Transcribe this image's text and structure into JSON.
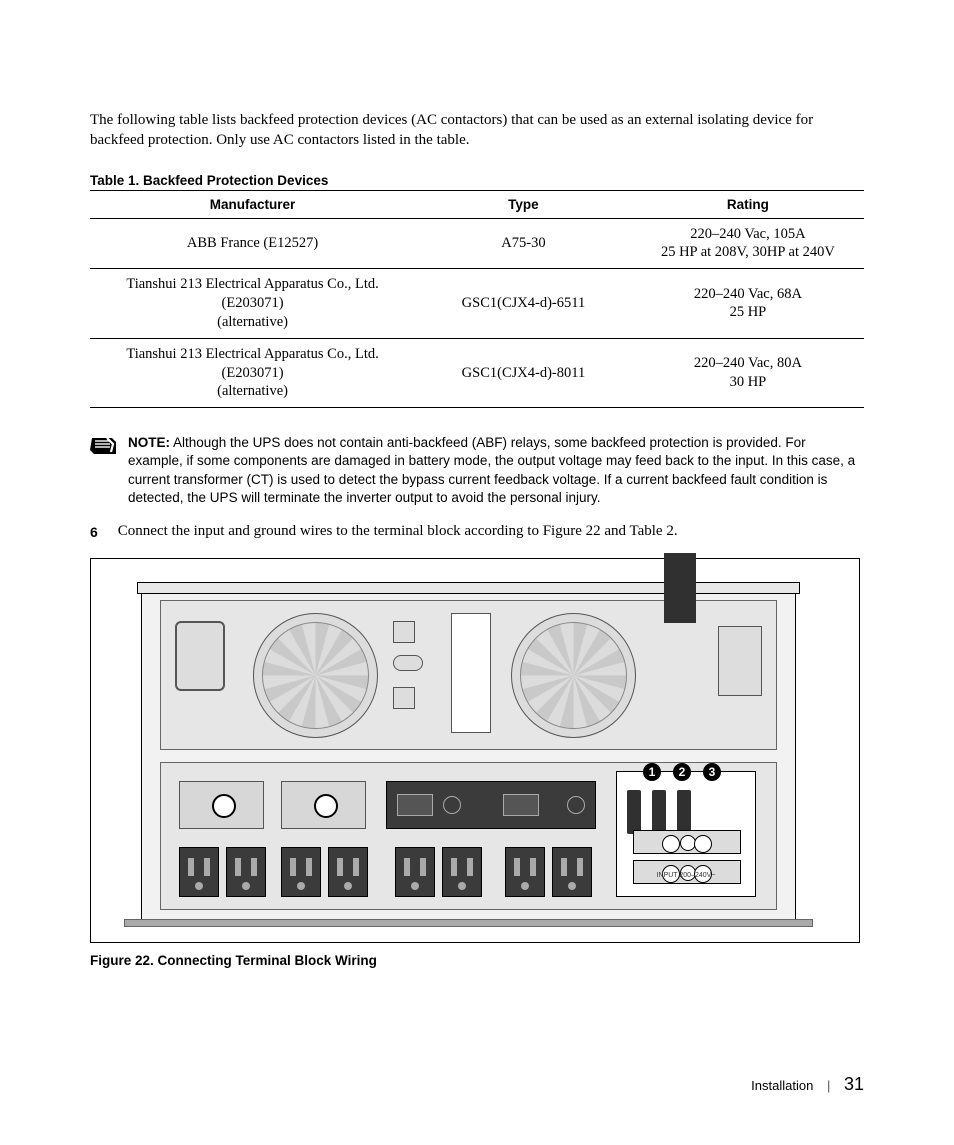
{
  "intro": "The following table lists backfeed protection devices (AC contactors) that can be used as an external isolating device for backfeed protection. Only use AC contactors listed in the table.",
  "table": {
    "title": "Table 1. Backfeed Protection Devices",
    "columns": [
      "Manufacturer",
      "Type",
      "Rating"
    ],
    "col_widths": [
      "42%",
      "28%",
      "30%"
    ],
    "rows": [
      {
        "manufacturer": "ABB France (E12527)",
        "type": "A75-30",
        "rating": "220–240 Vac, 105A\n25 HP at 208V, 30HP at 240V"
      },
      {
        "manufacturer": "Tianshui 213 Electrical Apparatus Co., Ltd. (E203071)\n(alternative)",
        "type": "GSC1(CJX4-d)-6511",
        "rating": "220–240 Vac, 68A\n25 HP"
      },
      {
        "manufacturer": "Tianshui 213 Electrical Apparatus Co., Ltd. (E203071)\n(alternative)",
        "type": "GSC1(CJX4-d)-8011",
        "rating": "220–240 Vac, 80A\n30 HP"
      }
    ]
  },
  "note": {
    "label": "NOTE:",
    "body": "Although the UPS does not contain anti-backfeed (ABF) relays, some backfeed protection is provided. For example, if some components are damaged in battery mode, the output voltage may feed back to the input. In this case, a current transformer (CT) is used to detect the bypass current feedback voltage. If a current backfeed fault condition is detected, the UPS will terminate the inverter output to avoid the personal injury."
  },
  "step": {
    "num": "6",
    "text": "Connect the input and ground wires to the terminal block according to Figure 22 and Table 2."
  },
  "figure": {
    "caption": "Figure 22. Connecting Terminal Block Wiring",
    "callouts": [
      "1",
      "2",
      "3"
    ],
    "colors": {
      "panel": "#f2f2f2",
      "inner": "#e6e6e6",
      "dark": "#3b3b3b",
      "cable": "#303030"
    }
  },
  "footer": {
    "section": "Installation",
    "page": "31"
  }
}
